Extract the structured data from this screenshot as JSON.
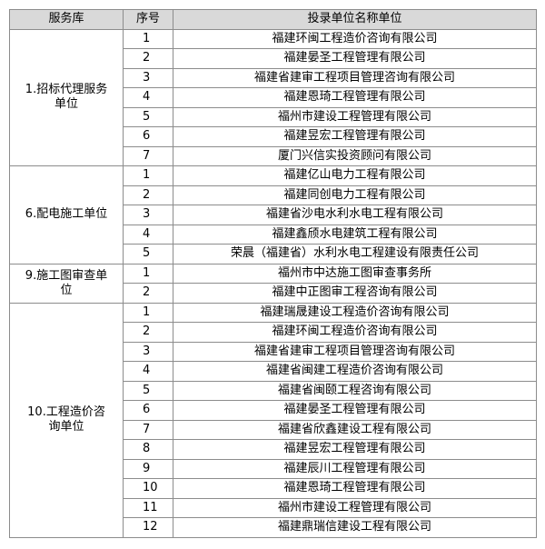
{
  "table": {
    "header": [
      "服务库",
      "序号",
      "投录单位名称单位"
    ],
    "groups": [
      {
        "name": "1.招标代理服务单位",
        "rows": [
          [
            1,
            "福建环闽工程造价咨询有限公司"
          ],
          [
            2,
            "福建晏圣工程管理有限公司"
          ],
          [
            3,
            "福建省建审工程项目管理咨询有限公司"
          ],
          [
            4,
            "福建恩琦工程管理有限公司"
          ],
          [
            5,
            "福州市建设工程管理有限公司"
          ],
          [
            6,
            "福建昱宏工程管理有限公司"
          ],
          [
            7,
            "厦门兴信实投资顾问有限公司"
          ]
        ]
      },
      {
        "name": "6.配电施工单位",
        "rows": [
          [
            1,
            "福建亿山电力工程有限公司"
          ],
          [
            2,
            "福建同创电力工程有限公司"
          ],
          [
            3,
            "福建省沙电水利水电工程有限公司"
          ],
          [
            4,
            "福建鑫颀水电建筑工程有限公司"
          ],
          [
            5,
            "荣晨（福建省）水利水电工程建设有限责任公司"
          ]
        ]
      },
      {
        "name": "9.施工图审查单位",
        "rows": [
          [
            1,
            "福州市中达施工图审查事务所"
          ],
          [
            2,
            "福建中正图审工程咨询有限公司"
          ]
        ]
      },
      {
        "name": "10.工程造价咨询单位",
        "rows": [
          [
            1,
            "福建瑞晟建设工程造价咨询有限公司"
          ],
          [
            2,
            "福建环闽工程造价咨询有限公司"
          ],
          [
            3,
            "福建省建审工程项目管理咨询有限公司"
          ],
          [
            4,
            "福建省闽建工程造价咨询有限公司"
          ],
          [
            5,
            "福建省闽颐工程咨询有限公司"
          ],
          [
            6,
            "福建晏圣工程管理有限公司"
          ],
          [
            7,
            "福建省欣鑫建设工程有限公司"
          ],
          [
            8,
            "福建昱宏工程管理有限公司"
          ],
          [
            9,
            "福建辰川工程管理有限公司"
          ],
          [
            10,
            "福建恩琦工程管理有限公司"
          ],
          [
            11,
            "福州市建设工程管理有限公司"
          ],
          [
            12,
            "福建鼎瑞信建设工程有限公司"
          ]
        ]
      }
    ]
  }
}
